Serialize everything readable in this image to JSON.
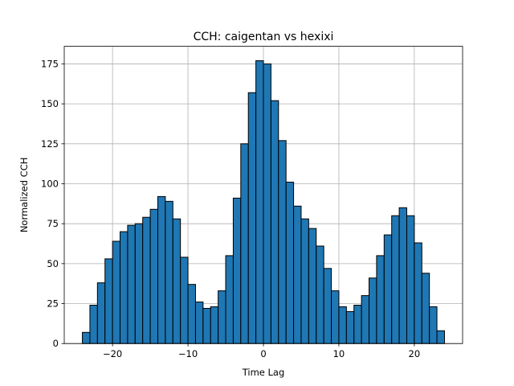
{
  "chart_data": {
    "type": "bar",
    "title": "CCH: caigentan vs hexixi",
    "xlabel": "Time Lag",
    "ylabel": "Normalized CCH",
    "bar_color": "#1f77b4",
    "edge_color": "#000000",
    "grid": true,
    "xlim": [
      -26.4,
      26.4
    ],
    "ylim": [
      0,
      186
    ],
    "xticks": [
      -20,
      -10,
      0,
      10,
      20
    ],
    "xtick_labels": [
      "−20",
      "−10",
      "0",
      "10",
      "20"
    ],
    "yticks": [
      0,
      25,
      50,
      75,
      100,
      125,
      150,
      175
    ],
    "yticks_labels": [
      "0",
      "25",
      "50",
      "75",
      "100",
      "125",
      "150",
      "175"
    ],
    "bin_width": 1,
    "x": [
      -24,
      -23,
      -22,
      -21,
      -20,
      -19,
      -18,
      -17,
      -16,
      -15,
      -14,
      -13,
      -12,
      -11,
      -10,
      -9,
      -8,
      -7,
      -6,
      -5,
      -4,
      -3,
      -2,
      -1,
      0,
      1,
      2,
      3,
      4,
      5,
      6,
      7,
      8,
      9,
      10,
      11,
      12,
      13,
      14,
      15,
      16,
      17,
      18,
      19,
      20,
      21,
      22,
      23
    ],
    "values": [
      7,
      24,
      38,
      53,
      64,
      70,
      74,
      75,
      79,
      84,
      92,
      89,
      78,
      54,
      37,
      26,
      22,
      23,
      33,
      55,
      91,
      125,
      157,
      177,
      175,
      152,
      127,
      101,
      86,
      78,
      72,
      61,
      47,
      33,
      23,
      20,
      24,
      30,
      41,
      55,
      68,
      80,
      85,
      80,
      63,
      44,
      23,
      8
    ]
  }
}
